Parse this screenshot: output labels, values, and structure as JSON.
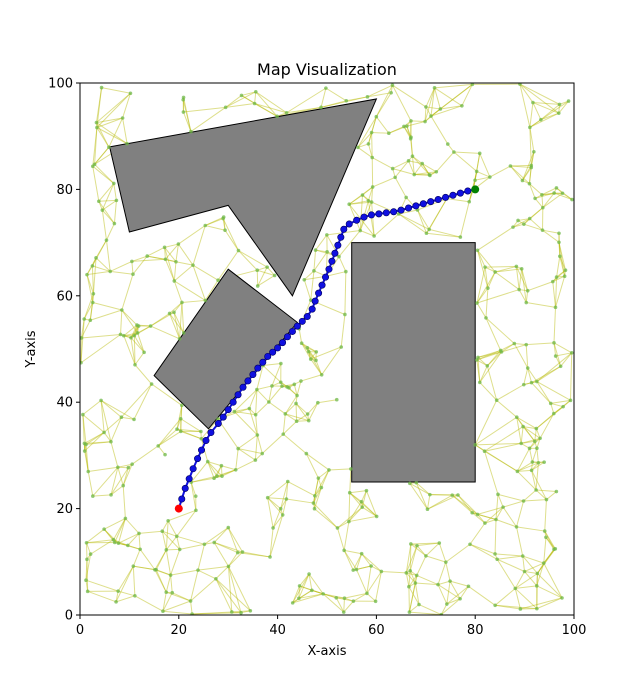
{
  "chart_data": {
    "type": "scatter",
    "title": "Map Visualization",
    "xlabel": "X-axis",
    "ylabel": "Y-axis",
    "xlim": [
      0,
      100
    ],
    "ylim": [
      0,
      100
    ],
    "xticks": [
      "0",
      "20",
      "40",
      "60",
      "80",
      "100"
    ],
    "yticks": [
      "0",
      "20",
      "40",
      "60",
      "80",
      "100"
    ],
    "grid": false,
    "colors": {
      "obstacle_fill": "#808080",
      "obstacle_stroke": "#000000",
      "graph_edge": "#b5b800",
      "graph_node": "#6fb84a",
      "path": "#1010e0",
      "start": "#ff0000",
      "goal": "#008000"
    },
    "obstacles": [
      {
        "name": "obstacle-triangle",
        "points": [
          [
            6,
            88
          ],
          [
            60,
            97
          ],
          [
            43,
            60
          ],
          [
            30,
            77
          ],
          [
            10,
            72
          ]
        ]
      },
      {
        "name": "obstacle-diamond",
        "points": [
          [
            30,
            65
          ],
          [
            44,
            55
          ],
          [
            26,
            35
          ],
          [
            15,
            45
          ]
        ]
      },
      {
        "name": "obstacle-rectangle",
        "points": [
          [
            55,
            70
          ],
          [
            80,
            70
          ],
          [
            80,
            25
          ],
          [
            55,
            25
          ]
        ]
      }
    ],
    "start": [
      20,
      20
    ],
    "goal": [
      80,
      80
    ],
    "path": [
      [
        20,
        20
      ],
      [
        20.6,
        21.8
      ],
      [
        21.3,
        23.8
      ],
      [
        22.1,
        25.6
      ],
      [
        22.9,
        27.5
      ],
      [
        23.8,
        29.4
      ],
      [
        24.6,
        31.0
      ],
      [
        25.5,
        32.8
      ],
      [
        26.5,
        34.3
      ],
      [
        28.0,
        36.0
      ],
      [
        29.0,
        37.2
      ],
      [
        30.0,
        38.6
      ],
      [
        31.0,
        40.0
      ],
      [
        32.0,
        41.4
      ],
      [
        33.0,
        42.8
      ],
      [
        34.0,
        44.0
      ],
      [
        35.0,
        45.2
      ],
      [
        36.0,
        46.4
      ],
      [
        37.0,
        47.5
      ],
      [
        38.0,
        48.6
      ],
      [
        39.0,
        49.4
      ],
      [
        40.0,
        50.2
      ],
      [
        41.0,
        51.2
      ],
      [
        42.0,
        52.3
      ],
      [
        43.0,
        53.3
      ],
      [
        44.0,
        54.3
      ],
      [
        45.0,
        55.2
      ],
      [
        46.0,
        56.1
      ],
      [
        47.0,
        57.5
      ],
      [
        47.6,
        59.0
      ],
      [
        48.3,
        60.5
      ],
      [
        49.0,
        62.0
      ],
      [
        49.7,
        63.5
      ],
      [
        50.4,
        65.0
      ],
      [
        51.0,
        66.5
      ],
      [
        51.6,
        68.0
      ],
      [
        52.2,
        69.5
      ],
      [
        52.8,
        71.0
      ],
      [
        53.4,
        72.5
      ],
      [
        54.5,
        73.5
      ],
      [
        56.0,
        74.2
      ],
      [
        57.5,
        74.8
      ],
      [
        59.0,
        75.2
      ],
      [
        60.5,
        75.4
      ],
      [
        62.0,
        75.6
      ],
      [
        63.5,
        75.8
      ],
      [
        65.0,
        76.1
      ],
      [
        66.5,
        76.5
      ],
      [
        68.0,
        76.9
      ],
      [
        69.5,
        77.3
      ],
      [
        71.0,
        77.7
      ],
      [
        72.5,
        78.1
      ],
      [
        74.0,
        78.5
      ],
      [
        75.5,
        78.9
      ],
      [
        77.0,
        79.3
      ],
      [
        78.5,
        79.7
      ],
      [
        80,
        80
      ]
    ]
  }
}
